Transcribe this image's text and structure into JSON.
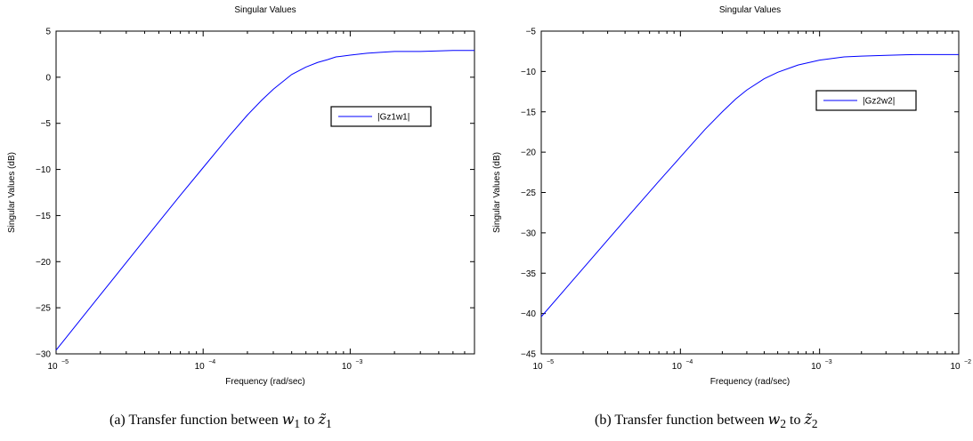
{
  "chart_data": [
    {
      "type": "line",
      "title": "Singular Values",
      "xlabel": "Frequency (rad/sec)",
      "ylabel": "Singular Values (dB)",
      "xscale": "log",
      "xlim": [
        1e-05,
        0.007
      ],
      "ylim": [
        -30,
        5
      ],
      "yticks": [
        -30,
        -25,
        -20,
        -15,
        -10,
        -5,
        0,
        5
      ],
      "xticks": [
        {
          "base": "10",
          "exp": "−5",
          "value": 1e-05
        },
        {
          "base": "10",
          "exp": "−4",
          "value": 0.0001
        },
        {
          "base": "10",
          "exp": "−3",
          "value": 0.001
        }
      ],
      "grid": false,
      "legend_position": "right",
      "color": "#0000ff",
      "series": [
        {
          "name": "|Gz1w1|",
          "x": [
            1e-05,
            2e-05,
            4e-05,
            7e-05,
            0.0001,
            0.00015,
            0.0002,
            0.00025,
            0.0003,
            0.0004,
            0.0005,
            0.0006,
            0.0007,
            0.0008,
            0.001,
            0.0013,
            0.0016,
            0.002,
            0.003,
            0.005,
            0.007
          ],
          "y": [
            -29.6,
            -23.6,
            -17.6,
            -12.8,
            -9.8,
            -6.4,
            -4.1,
            -2.5,
            -1.3,
            0.3,
            1.1,
            1.6,
            1.9,
            2.2,
            2.4,
            2.6,
            2.7,
            2.8,
            2.8,
            2.9,
            2.9
          ]
        }
      ],
      "caption": {
        "prefix": "(a)  Transfer function between ",
        "from_symbol": "w",
        "from_sub": "1",
        "middle": " to ",
        "to_symbol": "z̃",
        "to_sub": "1"
      }
    },
    {
      "type": "line",
      "title": "Singular Values",
      "xlabel": "Frequency (rad/sec)",
      "ylabel": "Singular Values (dB)",
      "xscale": "log",
      "xlim": [
        1e-05,
        0.01
      ],
      "ylim": [
        -45,
        -5
      ],
      "yticks": [
        -45,
        -40,
        -35,
        -30,
        -25,
        -20,
        -15,
        -10,
        -5
      ],
      "xticks": [
        {
          "base": "10",
          "exp": "−5",
          "value": 1e-05
        },
        {
          "base": "10",
          "exp": "−4",
          "value": 0.0001
        },
        {
          "base": "10",
          "exp": "−3",
          "value": 0.001
        },
        {
          "base": "10",
          "exp": "−2",
          "value": 0.01
        }
      ],
      "grid": false,
      "legend_position": "right",
      "color": "#0000ff",
      "series": [
        {
          "name": "|Gz2w2|",
          "x": [
            1e-05,
            2e-05,
            4e-05,
            7e-05,
            0.0001,
            0.00015,
            0.0002,
            0.00025,
            0.0003,
            0.0004,
            0.0005,
            0.0007,
            0.001,
            0.0015,
            0.002,
            0.003,
            0.005,
            0.01
          ],
          "y": [
            -40.4,
            -34.4,
            -28.4,
            -23.6,
            -20.6,
            -17.2,
            -15.0,
            -13.4,
            -12.3,
            -10.9,
            -10.1,
            -9.2,
            -8.6,
            -8.2,
            -8.1,
            -8.0,
            -7.9,
            -7.9
          ]
        }
      ],
      "caption": {
        "prefix": "(b)  Transfer function between ",
        "from_symbol": "w",
        "from_sub": "2",
        "middle": " to ",
        "to_symbol": "z̃",
        "to_sub": "2"
      }
    }
  ]
}
